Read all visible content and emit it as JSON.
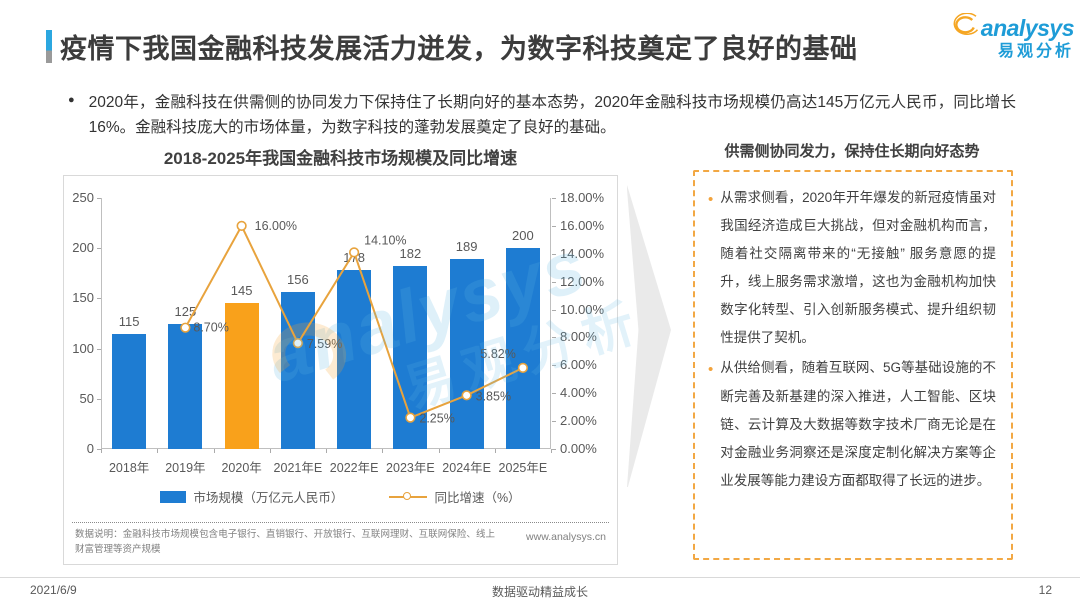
{
  "header": {
    "title": "疫情下我国金融科技发展活力迸发，为数字科技奠定了良好的基础",
    "logo": {
      "brand": "analysys",
      "brand_cn": "易观分析"
    }
  },
  "summary": {
    "bullet": "●",
    "text": "2020年，金融科技在供需侧的协同发力下保持住了长期向好的基本态势，2020年金融科技市场规模仍高达145万亿元人民币，同比增长16%。金融科技庞大的市场体量，为数字科技的蓬勃发展奠定了良好的基础。"
  },
  "chart": {
    "title": "2018-2025年我国金融科技市场规模及同比增速",
    "note": "数据说明：金融科技市场规模包含电子银行、直销银行、开放银行、互联网理财、互联网保险、线上财富管理等资产规模",
    "source": "www.analysys.cn"
  },
  "chart_data": {
    "type": "bar+line",
    "title": "2018-2025年我国金融科技市场规模及同比增速",
    "categories": [
      "2018年",
      "2019年",
      "2020年",
      "2021年E",
      "2022年E",
      "2023年E",
      "2024年E",
      "2025年E"
    ],
    "series": [
      {
        "name": "市场规模（万亿元人民币）",
        "type": "bar",
        "values": [
          115,
          125,
          145,
          156,
          178,
          182,
          189,
          200
        ],
        "color": "#1E7CD2",
        "highlight_index": 2,
        "highlight_color": "#F9A11B"
      },
      {
        "name": "同比增速（%）",
        "type": "line",
        "values": [
          null,
          8.7,
          16.0,
          7.59,
          14.1,
          2.25,
          3.85,
          5.82
        ],
        "labels": [
          null,
          "8.70%",
          "16.00%",
          "7.59%",
          "14.10%",
          "2.25%",
          "3.85%",
          "5.82%"
        ],
        "color": "#E8A33D"
      }
    ],
    "y_left": {
      "ticks": [
        0,
        50,
        100,
        150,
        200,
        250
      ],
      "max": 250
    },
    "y_right": {
      "ticks": [
        "0.00%",
        "2.00%",
        "4.00%",
        "6.00%",
        "8.00%",
        "10.00%",
        "12.00%",
        "14.00%",
        "16.00%",
        "18.00%"
      ],
      "max": 18
    },
    "grid": false,
    "legend_position": "bottom"
  },
  "panel": {
    "title": "供需侧协同发力，保持住长期向好态势",
    "bullet_char": "•",
    "bullets": [
      "从需求侧看，2020年开年爆发的新冠疫情虽对我国经济造成巨大挑战，但对金融机构而言，随着社交隔离带来的“无接触” 服务意愿的提升，线上服务需求激增，这也为金融机构加快数字化转型、引入创新服务模式、提升组织韧性提供了契机。",
      "从供给侧看，随着互联网、5G等基础设施的不断完善及新基建的深入推进，人工智能、区块链、云计算及大数据等数字技术厂商无论是在对金融业务洞察还是深度定制化解决方案等企业发展等能力建设方面都取得了长远的进步。"
    ]
  },
  "watermark": {
    "text": "analysys",
    "text_cn": "易观分析"
  },
  "footer": {
    "date": "2021/6/9",
    "center": "数据驱动精益成长",
    "page": "12"
  },
  "colors": {
    "bar_blue": "#1E7CD2",
    "bar_orange": "#F9A11B",
    "line_orange": "#E8A33D",
    "accent_blue": "#2BA7E0",
    "dashed_border": "#F2A844",
    "brand_blue": "#1E9CD7"
  }
}
